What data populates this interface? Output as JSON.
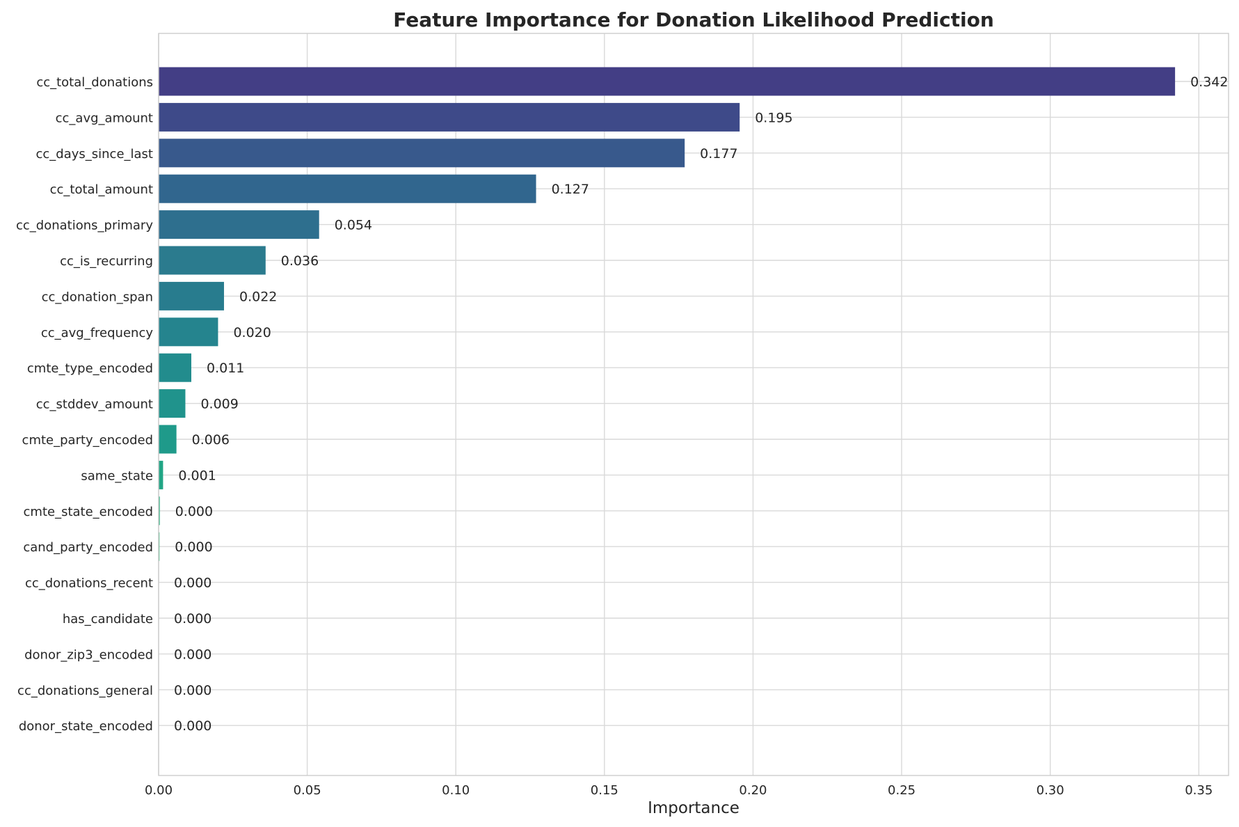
{
  "chart_data": {
    "type": "bar",
    "orientation": "horizontal",
    "title": "Feature Importance for Donation Likelihood Prediction",
    "xlabel": "Importance",
    "ylabel": "",
    "xlim": [
      0,
      0.36
    ],
    "x_ticks": [
      0.0,
      0.05,
      0.1,
      0.15,
      0.2,
      0.25,
      0.3,
      0.35
    ],
    "x_tick_labels": [
      "0.00",
      "0.05",
      "0.10",
      "0.15",
      "0.20",
      "0.25",
      "0.30",
      "0.35"
    ],
    "grid": true,
    "colormap": "viridis",
    "categories": [
      "cc_total_donations",
      "cc_avg_amount",
      "cc_days_since_last",
      "cc_total_amount",
      "cc_donations_primary",
      "cc_is_recurring",
      "cc_donation_span",
      "cc_avg_frequency",
      "cmte_type_encoded",
      "cc_stddev_amount",
      "cmte_party_encoded",
      "same_state",
      "cmte_state_encoded",
      "cand_party_encoded",
      "cc_donations_recent",
      "has_candidate",
      "donor_zip3_encoded",
      "cc_donations_general",
      "donor_state_encoded"
    ],
    "values": [
      0.342,
      0.1955,
      0.177,
      0.127,
      0.054,
      0.036,
      0.022,
      0.02,
      0.011,
      0.009,
      0.006,
      0.0015,
      0.0004,
      0.0003,
      0.0,
      0.0,
      0.0,
      0.0,
      0.0
    ],
    "value_labels": [
      "0.342",
      "0.195",
      "0.177",
      "0.127",
      "0.054",
      "0.036",
      "0.022",
      "0.020",
      "0.011",
      "0.009",
      "0.006",
      "0.001",
      "0.000",
      "0.000",
      "0.000",
      "0.000",
      "0.000",
      "0.000",
      "0.000"
    ],
    "colors": [
      "#433e85",
      "#3e4a89",
      "#38598c",
      "#31668e",
      "#2e6f8e",
      "#2b7b8e",
      "#287c8e",
      "#25848e",
      "#228c8d",
      "#20938c",
      "#1f9a8a",
      "#21a585",
      "#2ab07f",
      "#35b779",
      "#46c06f",
      "#5ec962",
      "#75d054",
      "#90d743",
      "#addc30"
    ]
  }
}
